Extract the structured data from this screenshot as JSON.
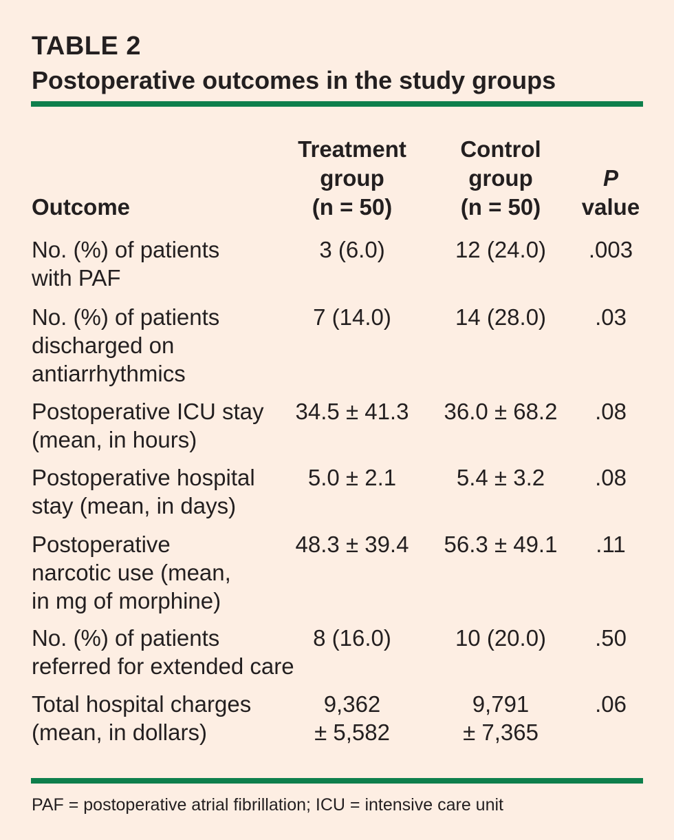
{
  "table": {
    "label": "TABLE 2",
    "title": "Postoperative outcomes in the study groups",
    "headers": {
      "outcome": "Outcome",
      "treatment": [
        "Treatment",
        "group",
        "(n = 50)"
      ],
      "control": [
        "Control",
        "group",
        "(n = 50)"
      ],
      "p_value": {
        "symbol": "P",
        "word": "value"
      }
    },
    "rows": [
      {
        "outcome": [
          "No. (%) of patients",
          "with PAF"
        ],
        "treatment": [
          "3 (6.0)"
        ],
        "control": [
          "12 (24.0)"
        ],
        "p": ".003"
      },
      {
        "outcome": [
          "No. (%) of patients",
          "discharged on",
          "antiarrhythmics"
        ],
        "treatment": [
          "7 (14.0)"
        ],
        "control": [
          "14 (28.0)"
        ],
        "p": ".03"
      },
      {
        "outcome": [
          "Postoperative ICU stay",
          "(mean, in hours)"
        ],
        "treatment": [
          "34.5 ± 41.3"
        ],
        "control": [
          "36.0 ± 68.2"
        ],
        "p": ".08"
      },
      {
        "outcome": [
          "Postoperative hospital",
          "stay (mean, in days)"
        ],
        "treatment": [
          "5.0 ± 2.1"
        ],
        "control": [
          "5.4 ± 3.2"
        ],
        "p": ".08"
      },
      {
        "outcome": [
          "Postoperative",
          "narcotic use (mean,",
          "in mg of morphine)"
        ],
        "treatment": [
          "48.3 ± 39.4"
        ],
        "control": [
          "56.3 ± 49.1"
        ],
        "p": ".11"
      },
      {
        "outcome": [
          "No. (%) of patients",
          "referred for extended care"
        ],
        "treatment": [
          "8 (16.0)"
        ],
        "control": [
          "10 (20.0)"
        ],
        "p": ".50"
      },
      {
        "outcome": [
          "Total hospital charges",
          "(mean, in dollars)"
        ],
        "treatment": [
          "9,362",
          "± 5,582"
        ],
        "control": [
          "9,791",
          "± 7,365"
        ],
        "p": ".06"
      }
    ],
    "footnote": "PAF = postoperative atrial fibrillation; ICU = intensive care unit"
  },
  "colors": {
    "background": "#fdeee3",
    "rule": "#0e7f4c",
    "text": "#231f20"
  }
}
